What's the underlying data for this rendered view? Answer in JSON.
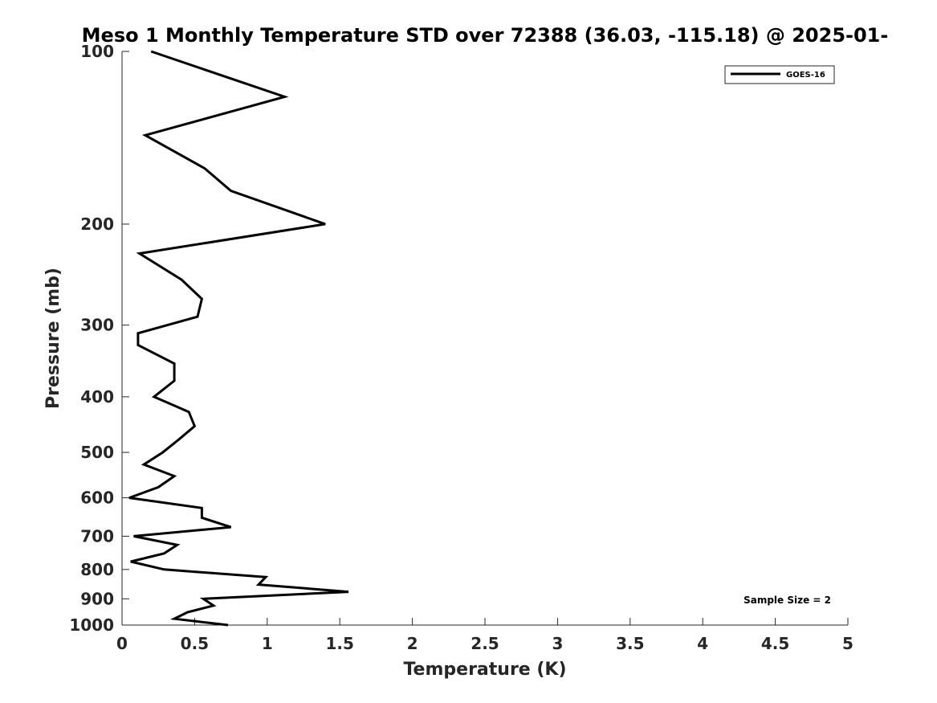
{
  "chart_data": {
    "type": "line",
    "title": "Meso 1 Monthly Temperature STD over 72388 (36.03, -115.18) @ 2025-01-",
    "xlabel": "Temperature (K)",
    "ylabel": "Pressure (mb)",
    "xlim": [
      0,
      5
    ],
    "ylim": [
      1000,
      100
    ],
    "y_scale": "log",
    "y_reversed": true,
    "x_ticks": [
      "0",
      "0.5",
      "1",
      "1.5",
      "2",
      "2.5",
      "3",
      "3.5",
      "4",
      "4.5",
      "5"
    ],
    "y_ticks": [
      "100",
      "200",
      "300",
      "400",
      "500",
      "600",
      "700",
      "800",
      "900",
      "1000"
    ],
    "grid": false,
    "legend_position": "top-right",
    "series": [
      {
        "name": "GOES-16",
        "color": "#000000",
        "x": [
          0.2,
          1.12,
          0.16,
          0.57,
          0.75,
          1.4,
          0.12,
          0.41,
          0.55,
          0.52,
          0.11,
          0.11,
          0.36,
          0.36,
          0.22,
          0.46,
          0.5,
          0.39,
          0.28,
          0.15,
          0.36,
          0.25,
          0.05,
          0.55,
          0.55,
          0.75,
          0.08,
          0.38,
          0.29,
          0.06,
          0.29,
          0.99,
          0.94,
          1.56,
          0.56,
          0.63,
          0.45,
          0.36,
          0.73
        ],
        "y": [
          100,
          120,
          140,
          160,
          175,
          200,
          225,
          250,
          270,
          290,
          310,
          325,
          350,
          375,
          400,
          425,
          450,
          475,
          500,
          525,
          550,
          575,
          600,
          625,
          650,
          675,
          700,
          725,
          750,
          775,
          800,
          825,
          850,
          875,
          900,
          925,
          950,
          975,
          1000
        ]
      }
    ],
    "annotations": [
      "Sample Size = 2"
    ]
  }
}
